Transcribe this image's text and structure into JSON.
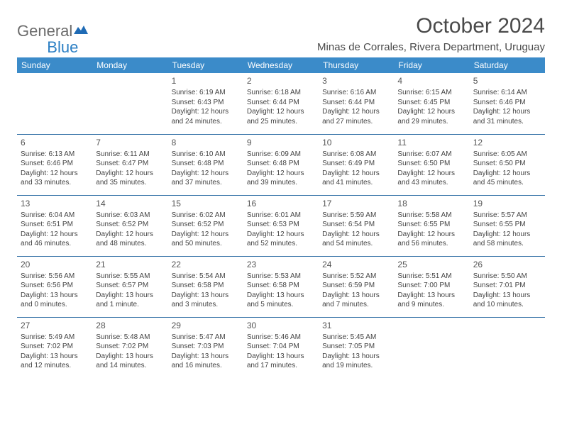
{
  "logo": {
    "general": "General",
    "blue": "Blue"
  },
  "title": "October 2024",
  "location": "Minas de Corrales, Rivera Department, Uruguay",
  "header_bg": "#3b8bc9",
  "header_fg": "#ffffff",
  "rule_color": "#2e6da4",
  "day_names": [
    "Sunday",
    "Monday",
    "Tuesday",
    "Wednesday",
    "Thursday",
    "Friday",
    "Saturday"
  ],
  "weeks": [
    [
      null,
      null,
      {
        "n": "1",
        "sr": "Sunrise: 6:19 AM",
        "ss": "Sunset: 6:43 PM",
        "dl": "Daylight: 12 hours and 24 minutes."
      },
      {
        "n": "2",
        "sr": "Sunrise: 6:18 AM",
        "ss": "Sunset: 6:44 PM",
        "dl": "Daylight: 12 hours and 25 minutes."
      },
      {
        "n": "3",
        "sr": "Sunrise: 6:16 AM",
        "ss": "Sunset: 6:44 PM",
        "dl": "Daylight: 12 hours and 27 minutes."
      },
      {
        "n": "4",
        "sr": "Sunrise: 6:15 AM",
        "ss": "Sunset: 6:45 PM",
        "dl": "Daylight: 12 hours and 29 minutes."
      },
      {
        "n": "5",
        "sr": "Sunrise: 6:14 AM",
        "ss": "Sunset: 6:46 PM",
        "dl": "Daylight: 12 hours and 31 minutes."
      }
    ],
    [
      {
        "n": "6",
        "sr": "Sunrise: 6:13 AM",
        "ss": "Sunset: 6:46 PM",
        "dl": "Daylight: 12 hours and 33 minutes."
      },
      {
        "n": "7",
        "sr": "Sunrise: 6:11 AM",
        "ss": "Sunset: 6:47 PM",
        "dl": "Daylight: 12 hours and 35 minutes."
      },
      {
        "n": "8",
        "sr": "Sunrise: 6:10 AM",
        "ss": "Sunset: 6:48 PM",
        "dl": "Daylight: 12 hours and 37 minutes."
      },
      {
        "n": "9",
        "sr": "Sunrise: 6:09 AM",
        "ss": "Sunset: 6:48 PM",
        "dl": "Daylight: 12 hours and 39 minutes."
      },
      {
        "n": "10",
        "sr": "Sunrise: 6:08 AM",
        "ss": "Sunset: 6:49 PM",
        "dl": "Daylight: 12 hours and 41 minutes."
      },
      {
        "n": "11",
        "sr": "Sunrise: 6:07 AM",
        "ss": "Sunset: 6:50 PM",
        "dl": "Daylight: 12 hours and 43 minutes."
      },
      {
        "n": "12",
        "sr": "Sunrise: 6:05 AM",
        "ss": "Sunset: 6:50 PM",
        "dl": "Daylight: 12 hours and 45 minutes."
      }
    ],
    [
      {
        "n": "13",
        "sr": "Sunrise: 6:04 AM",
        "ss": "Sunset: 6:51 PM",
        "dl": "Daylight: 12 hours and 46 minutes."
      },
      {
        "n": "14",
        "sr": "Sunrise: 6:03 AM",
        "ss": "Sunset: 6:52 PM",
        "dl": "Daylight: 12 hours and 48 minutes."
      },
      {
        "n": "15",
        "sr": "Sunrise: 6:02 AM",
        "ss": "Sunset: 6:52 PM",
        "dl": "Daylight: 12 hours and 50 minutes."
      },
      {
        "n": "16",
        "sr": "Sunrise: 6:01 AM",
        "ss": "Sunset: 6:53 PM",
        "dl": "Daylight: 12 hours and 52 minutes."
      },
      {
        "n": "17",
        "sr": "Sunrise: 5:59 AM",
        "ss": "Sunset: 6:54 PM",
        "dl": "Daylight: 12 hours and 54 minutes."
      },
      {
        "n": "18",
        "sr": "Sunrise: 5:58 AM",
        "ss": "Sunset: 6:55 PM",
        "dl": "Daylight: 12 hours and 56 minutes."
      },
      {
        "n": "19",
        "sr": "Sunrise: 5:57 AM",
        "ss": "Sunset: 6:55 PM",
        "dl": "Daylight: 12 hours and 58 minutes."
      }
    ],
    [
      {
        "n": "20",
        "sr": "Sunrise: 5:56 AM",
        "ss": "Sunset: 6:56 PM",
        "dl": "Daylight: 13 hours and 0 minutes."
      },
      {
        "n": "21",
        "sr": "Sunrise: 5:55 AM",
        "ss": "Sunset: 6:57 PM",
        "dl": "Daylight: 13 hours and 1 minute."
      },
      {
        "n": "22",
        "sr": "Sunrise: 5:54 AM",
        "ss": "Sunset: 6:58 PM",
        "dl": "Daylight: 13 hours and 3 minutes."
      },
      {
        "n": "23",
        "sr": "Sunrise: 5:53 AM",
        "ss": "Sunset: 6:58 PM",
        "dl": "Daylight: 13 hours and 5 minutes."
      },
      {
        "n": "24",
        "sr": "Sunrise: 5:52 AM",
        "ss": "Sunset: 6:59 PM",
        "dl": "Daylight: 13 hours and 7 minutes."
      },
      {
        "n": "25",
        "sr": "Sunrise: 5:51 AM",
        "ss": "Sunset: 7:00 PM",
        "dl": "Daylight: 13 hours and 9 minutes."
      },
      {
        "n": "26",
        "sr": "Sunrise: 5:50 AM",
        "ss": "Sunset: 7:01 PM",
        "dl": "Daylight: 13 hours and 10 minutes."
      }
    ],
    [
      {
        "n": "27",
        "sr": "Sunrise: 5:49 AM",
        "ss": "Sunset: 7:02 PM",
        "dl": "Daylight: 13 hours and 12 minutes."
      },
      {
        "n": "28",
        "sr": "Sunrise: 5:48 AM",
        "ss": "Sunset: 7:02 PM",
        "dl": "Daylight: 13 hours and 14 minutes."
      },
      {
        "n": "29",
        "sr": "Sunrise: 5:47 AM",
        "ss": "Sunset: 7:03 PM",
        "dl": "Daylight: 13 hours and 16 minutes."
      },
      {
        "n": "30",
        "sr": "Sunrise: 5:46 AM",
        "ss": "Sunset: 7:04 PM",
        "dl": "Daylight: 13 hours and 17 minutes."
      },
      {
        "n": "31",
        "sr": "Sunrise: 5:45 AM",
        "ss": "Sunset: 7:05 PM",
        "dl": "Daylight: 13 hours and 19 minutes."
      },
      null,
      null
    ]
  ]
}
